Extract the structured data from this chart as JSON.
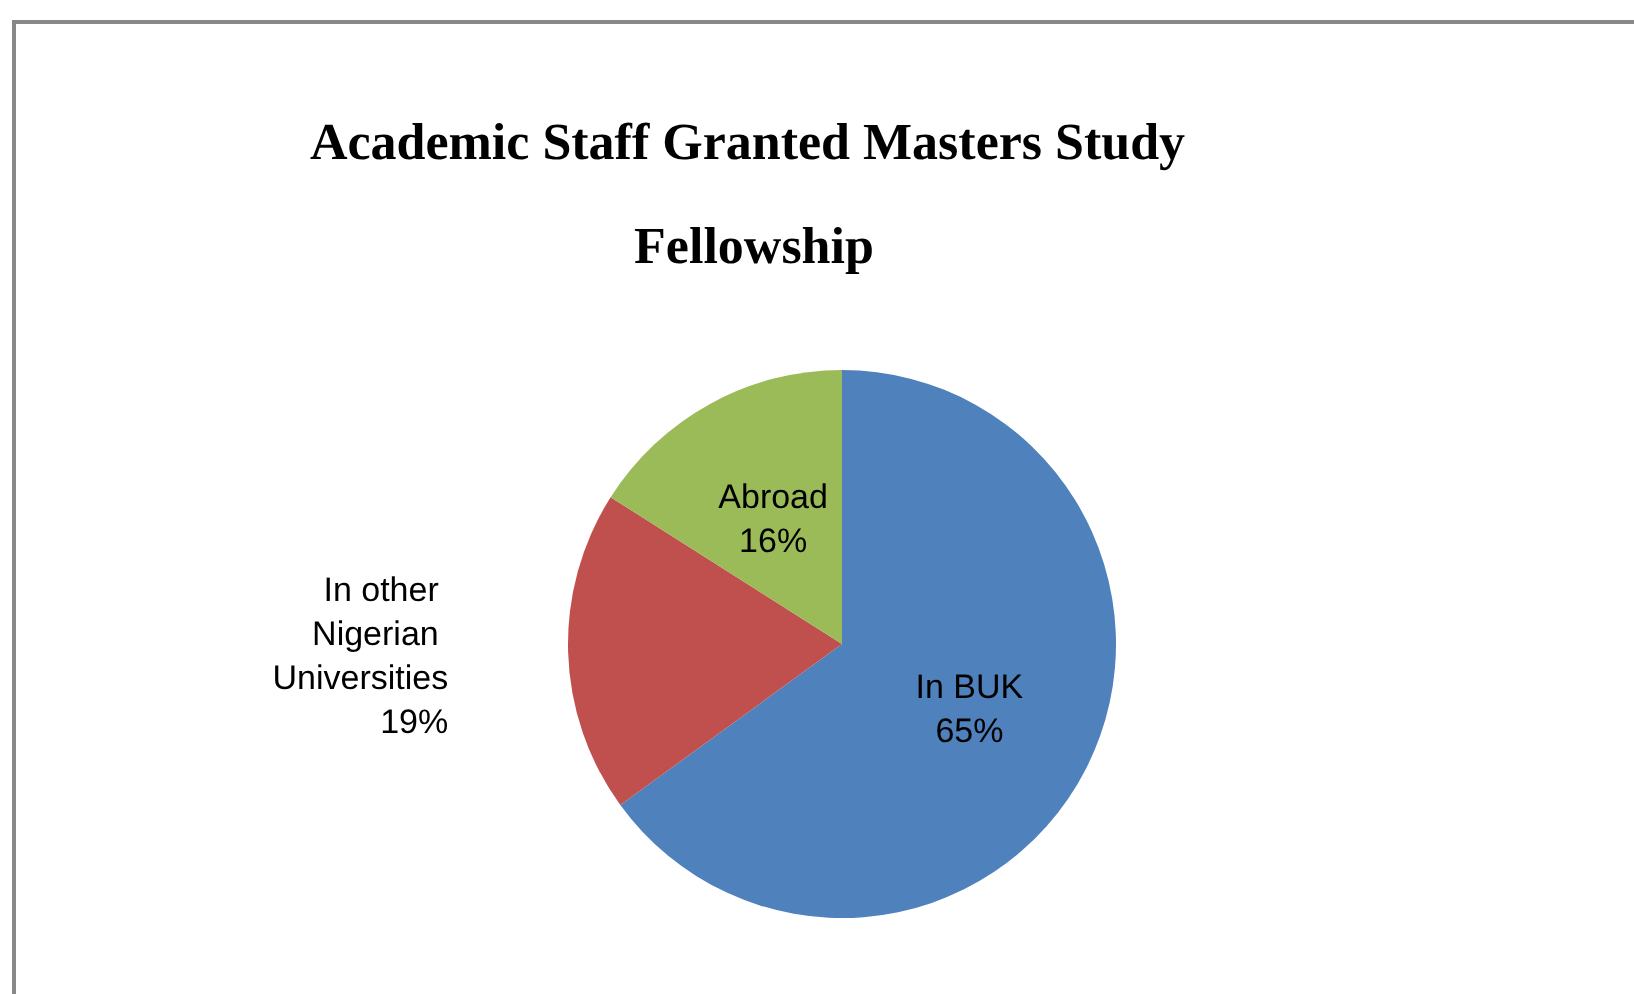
{
  "chart_data": {
    "type": "pie",
    "title": "Academic Staff Granted Masters Study Fellowship",
    "categories": [
      "In BUK",
      "In other Nigerian Universities",
      "Abroad"
    ],
    "values": [
      65,
      19,
      16
    ],
    "value_labels": [
      "65%",
      "19%",
      "16%"
    ],
    "colors": [
      "#4f81bd",
      "#c0504d",
      "#9bbb59"
    ],
    "legend": false
  }
}
